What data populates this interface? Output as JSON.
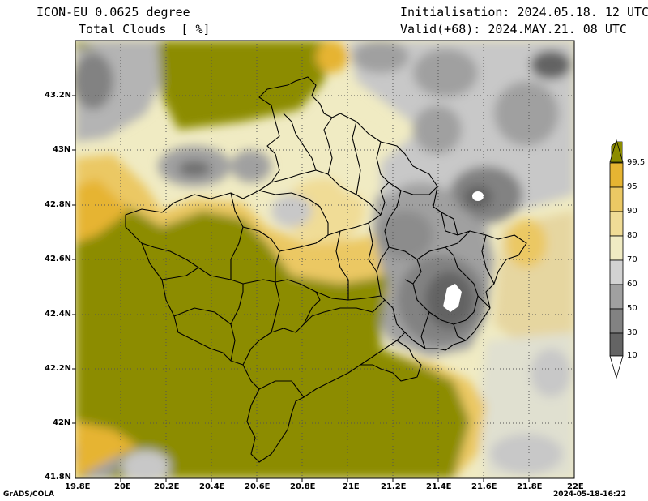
{
  "header": {
    "model": "ICON-EU 0.0625 degree",
    "variable": "Total Clouds  [ %]",
    "init": "Initialisation: 2024.05.18. 12 UTC",
    "valid": "Valid(+68): 2024.MAY.21. 08 UTC"
  },
  "axes": {
    "lon_ticks": [
      "19.8E",
      "20E",
      "20.2E",
      "20.4E",
      "20.6E",
      "20.8E",
      "21E",
      "21.2E",
      "21.4E",
      "21.6E",
      "21.8E",
      "22E"
    ],
    "lat_ticks": [
      "43.2N",
      "43N",
      "42.8N",
      "42.6N",
      "42.4N",
      "42.2N",
      "42N",
      "41.8N"
    ]
  },
  "colorbar": {
    "labels": [
      "99.5",
      "95",
      "90",
      "80",
      "70",
      "60",
      "50",
      "30",
      "10"
    ],
    "colors": [
      "#8c8c00",
      "#e6b432",
      "#ebc864",
      "#f0dc96",
      "#f0ebc3",
      "#d2d2d2",
      "#a0a0a0",
      "#828282",
      "#646464",
      "#ffffff"
    ]
  },
  "footer": {
    "credit": "GrADS/COLA",
    "timestamp": "2024-05-18-16:22"
  }
}
